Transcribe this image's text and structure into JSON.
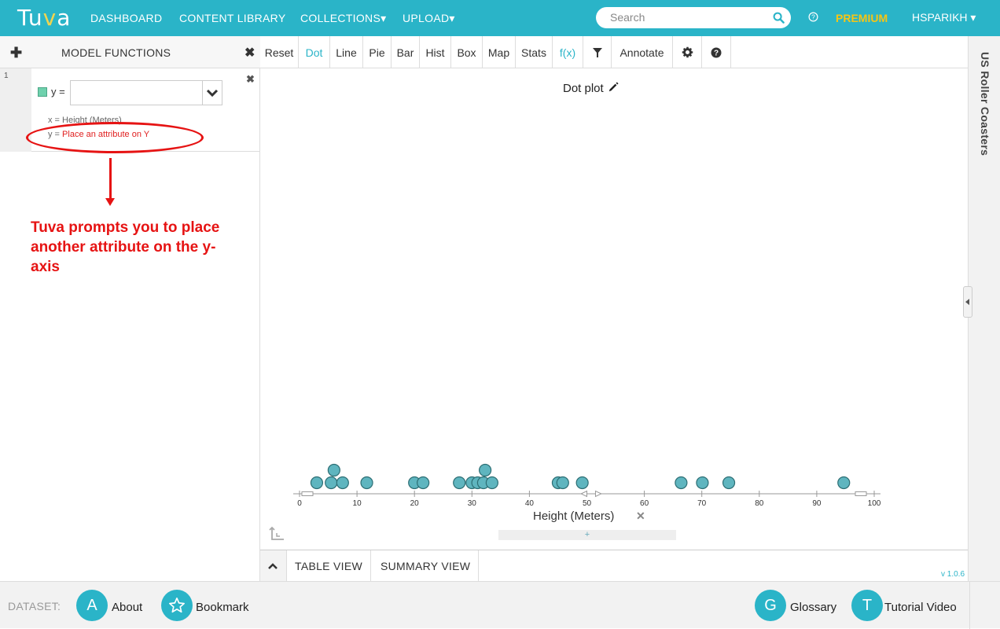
{
  "topbar": {
    "logo_text_1": "Tu",
    "logo_text_2": "v",
    "logo_text_3": "a",
    "nav": [
      "DASHBOARD",
      "CONTENT LIBRARY",
      "COLLECTIONS▾",
      "UPLOAD▾"
    ],
    "search_placeholder": "Search",
    "premium": "PREMIUM",
    "user": "HSPARIKH ▾"
  },
  "sidebar": {
    "title": "MODEL FUNCTIONS",
    "row_number": "1",
    "y_eq": "y =",
    "x_line_label": "x = Height (Meters)",
    "y_line_prefix": "y = ",
    "y_line_prompt": "Place an attribute on Y",
    "swatch_color": "#6fd1ad"
  },
  "annotation": {
    "text": "Tuva prompts you to place another attribute on the y-axis",
    "color": "#e61313"
  },
  "toolbar": {
    "buttons": [
      "Reset",
      "Dot",
      "Line",
      "Pie",
      "Bar",
      "Hist",
      "Box",
      "Map",
      "Stats",
      "f(x)",
      "",
      "Annotate",
      "",
      ""
    ],
    "active": "Dot"
  },
  "plot": {
    "title": "Dot plot",
    "add_attr": "+"
  },
  "chart_data": {
    "type": "scatter",
    "title": "Dot plot",
    "xlabel": "Height (Meters)",
    "ylabel": "",
    "xlim": [
      0,
      100
    ],
    "xticks": [
      0,
      10,
      20,
      30,
      40,
      50,
      60,
      70,
      80,
      90,
      100
    ],
    "point_color": "#5fb5bf",
    "points": [
      {
        "x": 3,
        "level": 0
      },
      {
        "x": 5.5,
        "level": 0
      },
      {
        "x": 6,
        "level": 1
      },
      {
        "x": 7.5,
        "level": 0
      },
      {
        "x": 11.7,
        "level": 0
      },
      {
        "x": 20,
        "level": 0
      },
      {
        "x": 21.5,
        "level": 0
      },
      {
        "x": 27.8,
        "level": 0
      },
      {
        "x": 30,
        "level": 0
      },
      {
        "x": 31,
        "level": 0
      },
      {
        "x": 32,
        "level": 0
      },
      {
        "x": 32.3,
        "level": 1
      },
      {
        "x": 33.5,
        "level": 0
      },
      {
        "x": 45,
        "level": 0
      },
      {
        "x": 45.8,
        "level": 0
      },
      {
        "x": 49.2,
        "level": 0
      },
      {
        "x": 66.4,
        "level": 0
      },
      {
        "x": 70.1,
        "level": 0
      },
      {
        "x": 74.7,
        "level": 0
      },
      {
        "x": 94.7,
        "level": 0
      }
    ]
  },
  "bottom": {
    "tabs": [
      "TABLE VIEW",
      "SUMMARY VIEW"
    ],
    "version": "v 1.0.6"
  },
  "right_rail": {
    "title": "US Roller Coasters"
  },
  "footer": {
    "label": "DATASET:",
    "about_letter": "A",
    "about": "About",
    "bookmark": "Bookmark",
    "glossary_letter": "G",
    "glossary": "Glossary",
    "tutorial_letter": "T",
    "tutorial": "Tutorial Video"
  }
}
